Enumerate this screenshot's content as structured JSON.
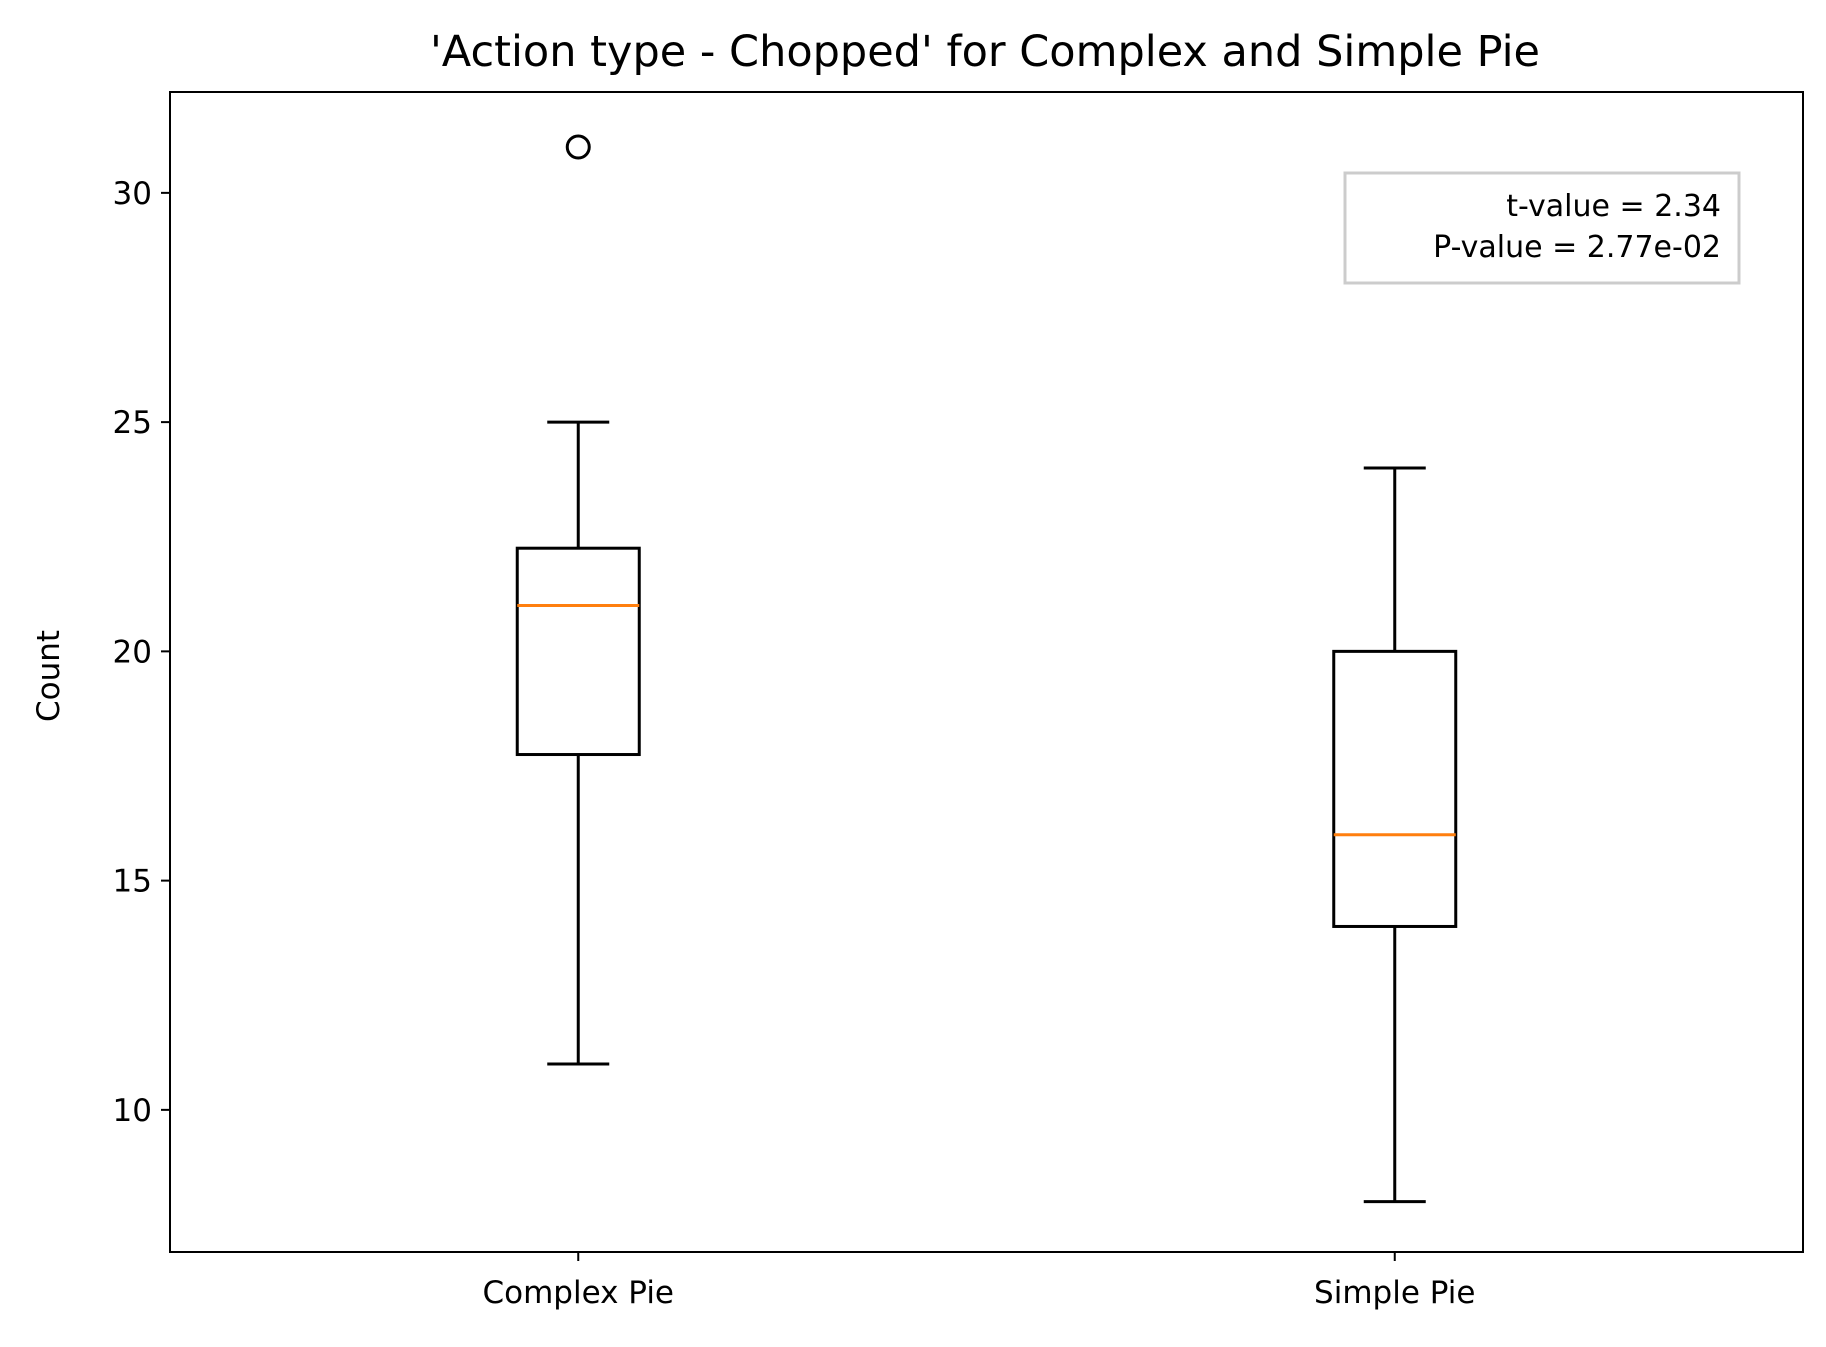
{
  "chart_data": {
    "type": "box",
    "title": "'Action type - Chopped' for Complex and Simple Pie",
    "xlabel": "",
    "ylabel": "Count",
    "ylim": [
      6.9,
      32.2
    ],
    "yticks": [
      10,
      15,
      20,
      25,
      30
    ],
    "categories": [
      "Complex Pie",
      "Simple Pie"
    ],
    "boxes": [
      {
        "category": "Complex Pie",
        "whisker_low": 11,
        "q1": 17.75,
        "median": 21,
        "q3": 22.25,
        "whisker_high": 25,
        "outliers": [
          31
        ]
      },
      {
        "category": "Simple Pie",
        "whisker_low": 8,
        "q1": 14,
        "median": 16,
        "q3": 20,
        "whisker_high": 24,
        "outliers": []
      }
    ],
    "annotation": [
      "t-value = 2.34",
      "P-value = 2.77e-02"
    ],
    "legend_position": "top-right",
    "grid": false,
    "colors": {
      "box": "#000000",
      "median": "#ff7f0e",
      "frame": "#000000",
      "annotation_border": "#cccccc"
    }
  }
}
